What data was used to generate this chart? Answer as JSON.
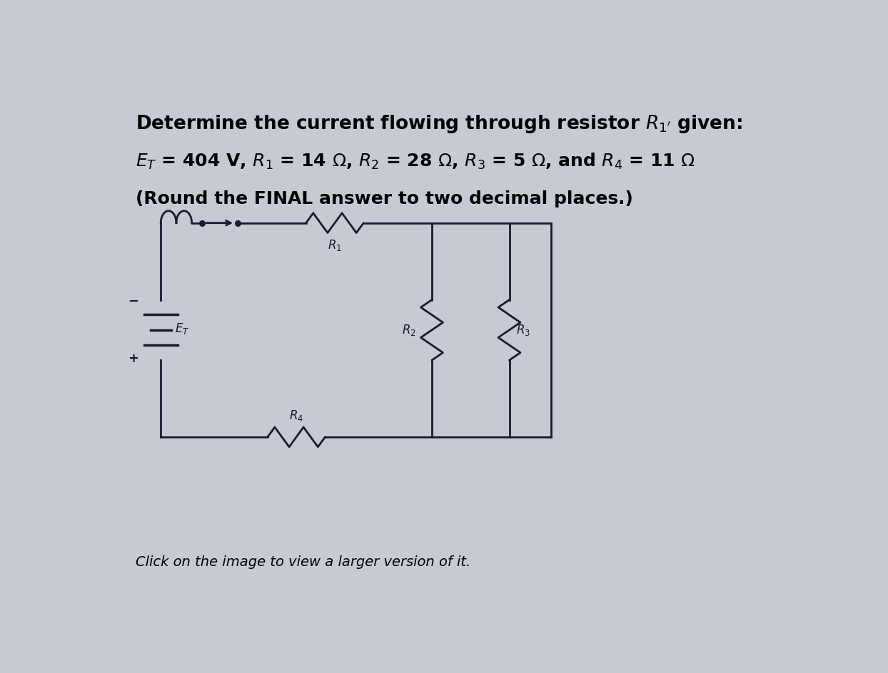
{
  "bg_color": "#c5cad3",
  "fig_width": 12.44,
  "fig_height": 9.44,
  "text_color": "#000000",
  "circuit_color": "#1a1a2e",
  "line_width": 2.0
}
